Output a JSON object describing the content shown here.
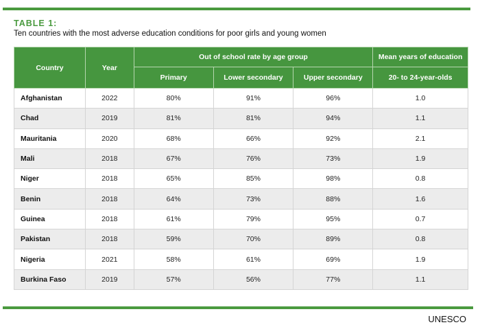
{
  "table_label": "TABLE 1:",
  "subtitle": "Ten countries with the most adverse education conditions for poor girls and young women",
  "headers": {
    "country": "Country",
    "year": "Year",
    "out_of_school": "Out of school rate by age group",
    "primary": "Primary",
    "lower_secondary": "Lower secondary",
    "upper_secondary": "Upper secondary",
    "mean_years": "Mean years of education",
    "age_range": "20- to 24-year-olds"
  },
  "rows": [
    [
      "Afghanistan",
      "2022",
      "80%",
      "91%",
      "96%",
      "1.0"
    ],
    [
      "Chad",
      "2019",
      "81%",
      "81%",
      "94%",
      "1.1"
    ],
    [
      "Mauritania",
      "2020",
      "68%",
      "66%",
      "92%",
      "2.1"
    ],
    [
      "Mali",
      "2018",
      "67%",
      "76%",
      "73%",
      "1.9"
    ],
    [
      "Niger",
      "2018",
      "65%",
      "85%",
      "98%",
      "0.8"
    ],
    [
      "Benin",
      "2018",
      "64%",
      "73%",
      "88%",
      "1.6"
    ],
    [
      "Guinea",
      "2018",
      "61%",
      "79%",
      "95%",
      "0.7"
    ],
    [
      "Pakistan",
      "2018",
      "59%",
      "70%",
      "89%",
      "0.8"
    ],
    [
      "Nigeria",
      "2021",
      "58%",
      "61%",
      "69%",
      "1.9"
    ],
    [
      "Burkina Faso",
      "2019",
      "57%",
      "56%",
      "77%",
      "1.1"
    ]
  ],
  "source": "UNESCO",
  "colors": {
    "accent": "#4a9a3f",
    "header_bg": "#46963f",
    "stripe": "#ececec"
  }
}
